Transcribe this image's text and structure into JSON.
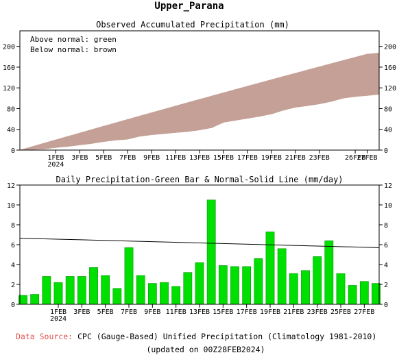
{
  "title": "Upper_Parana",
  "charts": {
    "accumulated": {
      "title": "Observed Accumulated Precipitation (mm)",
      "legend_above": "Above normal: green",
      "legend_below": "Below normal: brown"
    },
    "daily": {
      "title": "Daily Precipitation-Green Bar & Normal-Solid Line (mm/day)"
    }
  },
  "footer": {
    "source_label": "Data Source:",
    "source_text": "CPC (Gauge-Based) Unified Precipitation (Climatology 1981-2010)",
    "updated": "(updated on 00Z28FEB2024)"
  },
  "colors": {
    "below_normal": "#c4a096",
    "above_normal": "#00cc00",
    "bar": "#00e000",
    "bar_edge": "#008000",
    "normal_line": "#000000",
    "source_label": "#e05050"
  },
  "chart_data": [
    {
      "type": "area",
      "title": "Observed Accumulated Precipitation (mm)",
      "x": [
        "2024-01-29",
        "2024-01-30",
        "2024-01-31",
        "2024-02-01",
        "2024-02-02",
        "2024-02-03",
        "2024-02-04",
        "2024-02-05",
        "2024-02-06",
        "2024-02-07",
        "2024-02-08",
        "2024-02-09",
        "2024-02-10",
        "2024-02-11",
        "2024-02-12",
        "2024-02-13",
        "2024-02-14",
        "2024-02-15",
        "2024-02-16",
        "2024-02-17",
        "2024-02-18",
        "2024-02-19",
        "2024-02-20",
        "2024-02-21",
        "2024-02-22",
        "2024-02-23",
        "2024-02-24",
        "2024-02-25",
        "2024-02-26",
        "2024-02-27",
        "2024-02-28"
      ],
      "series": [
        {
          "name": "Observed accumulated",
          "values": [
            0,
            1,
            2,
            4.8,
            7,
            9.8,
            12.6,
            16.3,
            19.2,
            20.8,
            26.5,
            29.4,
            31.5,
            33.7,
            35.5,
            38.7,
            42.9,
            53.4,
            57.3,
            61.1,
            64.9,
            69.5,
            76.8,
            82.4,
            85.5,
            88.9,
            93.7,
            100.1,
            103.2,
            105.1,
            107.4
          ]
        },
        {
          "name": "Normal accumulated",
          "values": [
            0,
            6.65,
            13.28,
            19.9,
            26.5,
            33.08,
            39.65,
            46.2,
            52.73,
            59.24,
            65.73,
            72.2,
            78.65,
            85.08,
            91.49,
            97.88,
            104.25,
            110.6,
            116.93,
            123.24,
            129.53,
            135.8,
            142.05,
            148.28,
            154.49,
            160.68,
            166.85,
            173.0,
            179.13,
            185.24,
            187.25
          ]
        }
      ],
      "x_ticks": [
        "1FEB\n2024",
        "3FEB",
        "5FEB",
        "7FEB",
        "9FEB",
        "11FEB",
        "13FEB",
        "15FEB",
        "17FEB",
        "19FEB",
        "21FEB",
        "23FEB",
        "26FEB",
        "27FEB"
      ],
      "ylim": [
        0,
        230
      ],
      "yticks": [
        0,
        40,
        80,
        120,
        160,
        200
      ],
      "grid": false
    },
    {
      "type": "bar",
      "title": "Daily Precipitation-Green Bar & Normal-Solid Line (mm/day)",
      "x": [
        "2024-01-29",
        "2024-01-30",
        "2024-01-31",
        "2024-02-01",
        "2024-02-02",
        "2024-02-03",
        "2024-02-04",
        "2024-02-05",
        "2024-02-06",
        "2024-02-07",
        "2024-02-08",
        "2024-02-09",
        "2024-02-10",
        "2024-02-11",
        "2024-02-12",
        "2024-02-13",
        "2024-02-14",
        "2024-02-15",
        "2024-02-16",
        "2024-02-17",
        "2024-02-18",
        "2024-02-19",
        "2024-02-20",
        "2024-02-21",
        "2024-02-22",
        "2024-02-23",
        "2024-02-24",
        "2024-02-25",
        "2024-02-26",
        "2024-02-27",
        "2024-02-28"
      ],
      "values": [
        0.9,
        1.0,
        2.8,
        2.2,
        2.8,
        2.8,
        3.7,
        2.9,
        1.6,
        5.7,
        2.9,
        2.1,
        2.2,
        1.8,
        3.2,
        4.2,
        10.5,
        3.9,
        3.8,
        3.8,
        4.6,
        7.3,
        5.6,
        3.1,
        3.4,
        4.8,
        6.4,
        3.1,
        1.9,
        2.3,
        2.1
      ],
      "normal_line": [
        6.65,
        5.7
      ],
      "x_ticks": [
        "1FEB\n2024",
        "3FEB",
        "5FEB",
        "7FEB",
        "9FEB",
        "11FEB",
        "13FEB",
        "15FEB",
        "17FEB",
        "19FEB",
        "21FEB",
        "23FEB",
        "25FEB",
        "27FEB"
      ],
      "ylim": [
        0,
        12
      ],
      "yticks": [
        0,
        2,
        4,
        6,
        8,
        10,
        12
      ],
      "grid": false
    }
  ]
}
